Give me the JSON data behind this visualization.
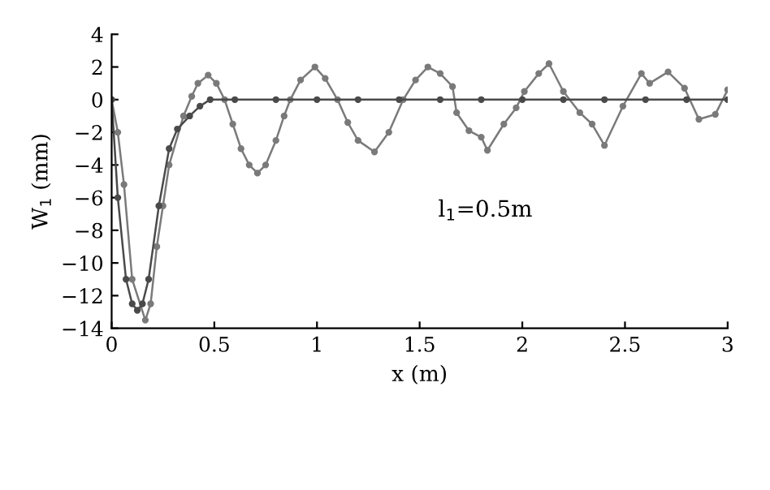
{
  "chart_data": {
    "type": "line",
    "xlabel": "x (m)",
    "ylabel": "W$_{1}$ (mm)",
    "annotations": [
      "l$_{1}$=0.5m"
    ],
    "xlim": [
      0,
      3
    ],
    "xticks": [
      0,
      0.5,
      1,
      1.5,
      2,
      2.5,
      3
    ],
    "ylim": [
      -14,
      4
    ],
    "yticks": [
      -14,
      -12,
      -10,
      -8,
      -6,
      -4,
      -2,
      0,
      2,
      4
    ],
    "grid": false,
    "marker": "circle",
    "line_style": "solid",
    "series": [
      {
        "color": "#7a7a7a",
        "x": [
          0,
          0.03,
          0.06,
          0.1,
          0.164,
          0.19,
          0.22,
          0.25,
          0.28,
          0.35,
          0.39,
          0.42,
          0.47,
          0.51,
          0.55,
          0.59,
          0.63,
          0.67,
          0.71,
          0.75,
          0.8,
          0.84,
          0.87,
          0.92,
          0.99,
          1.04,
          1.1,
          1.15,
          1.2,
          1.28,
          1.35,
          1.42,
          1.48,
          1.54,
          1.6,
          1.66,
          1.68,
          1.74,
          1.8,
          1.83,
          1.91,
          1.97,
          2.01,
          2.08,
          2.13,
          2.2,
          2.28,
          2.34,
          2.4,
          2.49,
          2.58,
          2.62,
          2.71,
          2.79,
          2.86,
          2.94,
          3.0
        ],
        "values": [
          0,
          -2,
          -5.2,
          -11,
          -13.5,
          -12.5,
          -9,
          -6.5,
          -4,
          -1,
          0.2,
          1,
          1.5,
          1,
          0,
          -1.5,
          -3,
          -4,
          -4.5,
          -4,
          -2.5,
          -1,
          0,
          1.2,
          2,
          1.3,
          0,
          -1.4,
          -2.5,
          -3.2,
          -2,
          0,
          1.2,
          2,
          1.6,
          0.8,
          -0.8,
          -1.9,
          -2.3,
          -3.1,
          -1.5,
          -0.5,
          0.5,
          1.6,
          2.2,
          0.5,
          -0.8,
          -1.5,
          -2.8,
          -0.4,
          1.6,
          1.0,
          1.7,
          0.7,
          -1.2,
          -0.9,
          0.6
        ]
      },
      {
        "color": "#4a4a4a",
        "x": [
          0,
          0.03,
          0.07,
          0.1,
          0.125,
          0.15,
          0.18,
          0.23,
          0.28,
          0.32,
          0.38,
          0.43,
          0.48,
          0.6,
          0.8,
          1.0,
          1.2,
          1.4,
          1.6,
          1.8,
          2.0,
          2.2,
          2.4,
          2.6,
          2.8,
          3.0
        ],
        "values": [
          0,
          -6,
          -11,
          -12.5,
          -12.9,
          -12.5,
          -11,
          -6.5,
          -3,
          -1.8,
          -1,
          -0.4,
          0,
          0,
          0,
          0,
          0,
          0,
          0,
          0,
          0,
          0,
          0,
          0,
          0,
          0
        ]
      }
    ]
  }
}
